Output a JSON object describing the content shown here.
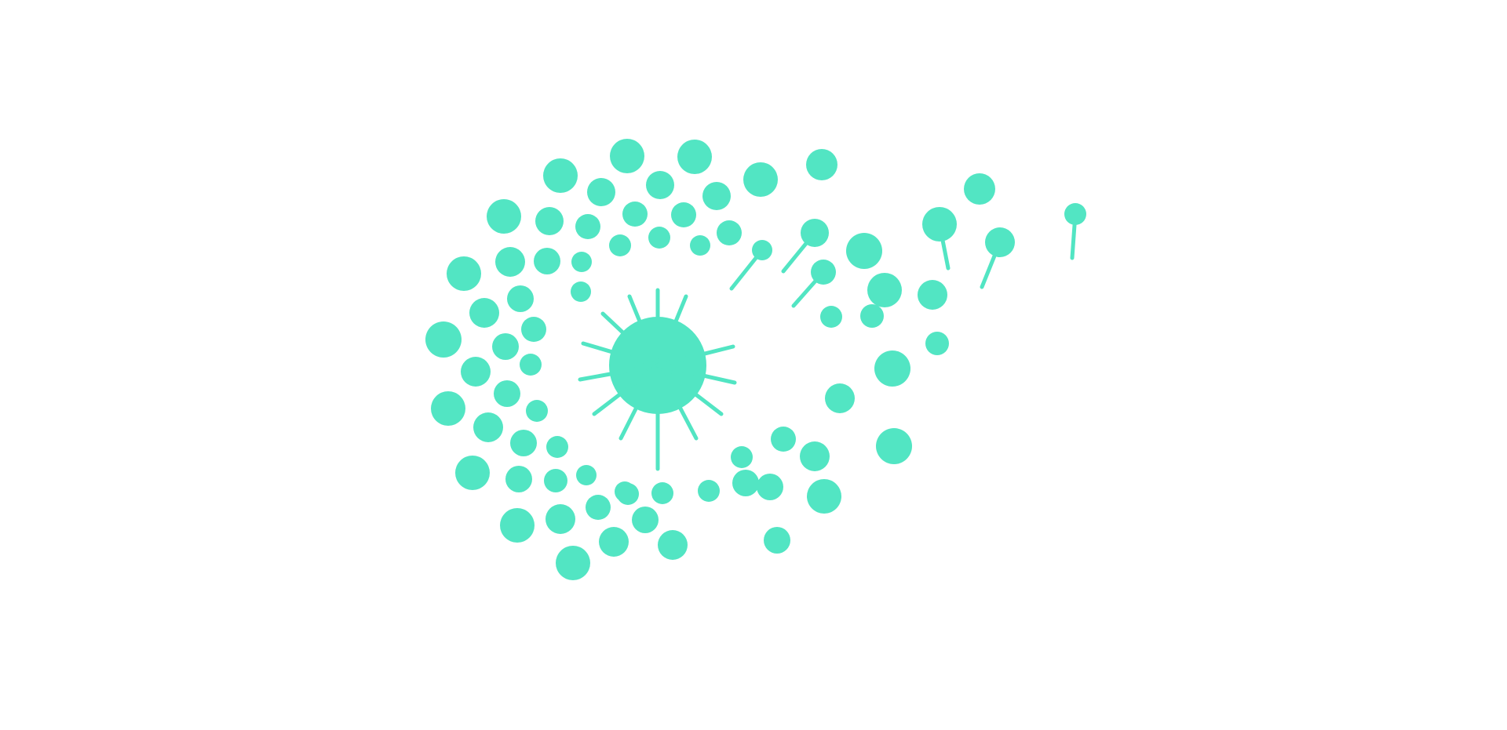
{
  "illustration": {
    "name": "dandelion-seed-spiral",
    "fill_color": "#52E5C3",
    "background_color": "#FFFFFF"
  }
}
